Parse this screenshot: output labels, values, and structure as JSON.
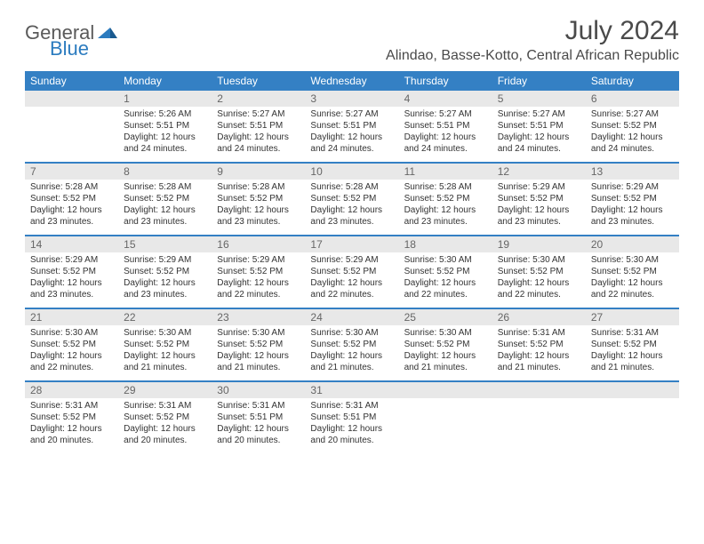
{
  "brand": {
    "part1": "General",
    "part2": "Blue"
  },
  "title": "July 2024",
  "location": "Alindao, Basse-Kotto, Central African Republic",
  "colors": {
    "header_bg": "#3480c4",
    "header_text": "#ffffff",
    "daynum_bg": "#e8e8e8",
    "rule": "#3480c4",
    "text": "#333333",
    "title_text": "#4a4a4a"
  },
  "weekdays": [
    "Sunday",
    "Monday",
    "Tuesday",
    "Wednesday",
    "Thursday",
    "Friday",
    "Saturday"
  ],
  "weeks": [
    [
      null,
      {
        "n": "1",
        "sr": "5:26 AM",
        "ss": "5:51 PM",
        "dl": "12 hours and 24 minutes."
      },
      {
        "n": "2",
        "sr": "5:27 AM",
        "ss": "5:51 PM",
        "dl": "12 hours and 24 minutes."
      },
      {
        "n": "3",
        "sr": "5:27 AM",
        "ss": "5:51 PM",
        "dl": "12 hours and 24 minutes."
      },
      {
        "n": "4",
        "sr": "5:27 AM",
        "ss": "5:51 PM",
        "dl": "12 hours and 24 minutes."
      },
      {
        "n": "5",
        "sr": "5:27 AM",
        "ss": "5:51 PM",
        "dl": "12 hours and 24 minutes."
      },
      {
        "n": "6",
        "sr": "5:27 AM",
        "ss": "5:52 PM",
        "dl": "12 hours and 24 minutes."
      }
    ],
    [
      {
        "n": "7",
        "sr": "5:28 AM",
        "ss": "5:52 PM",
        "dl": "12 hours and 23 minutes."
      },
      {
        "n": "8",
        "sr": "5:28 AM",
        "ss": "5:52 PM",
        "dl": "12 hours and 23 minutes."
      },
      {
        "n": "9",
        "sr": "5:28 AM",
        "ss": "5:52 PM",
        "dl": "12 hours and 23 minutes."
      },
      {
        "n": "10",
        "sr": "5:28 AM",
        "ss": "5:52 PM",
        "dl": "12 hours and 23 minutes."
      },
      {
        "n": "11",
        "sr": "5:28 AM",
        "ss": "5:52 PM",
        "dl": "12 hours and 23 minutes."
      },
      {
        "n": "12",
        "sr": "5:29 AM",
        "ss": "5:52 PM",
        "dl": "12 hours and 23 minutes."
      },
      {
        "n": "13",
        "sr": "5:29 AM",
        "ss": "5:52 PM",
        "dl": "12 hours and 23 minutes."
      }
    ],
    [
      {
        "n": "14",
        "sr": "5:29 AM",
        "ss": "5:52 PM",
        "dl": "12 hours and 23 minutes."
      },
      {
        "n": "15",
        "sr": "5:29 AM",
        "ss": "5:52 PM",
        "dl": "12 hours and 23 minutes."
      },
      {
        "n": "16",
        "sr": "5:29 AM",
        "ss": "5:52 PM",
        "dl": "12 hours and 22 minutes."
      },
      {
        "n": "17",
        "sr": "5:29 AM",
        "ss": "5:52 PM",
        "dl": "12 hours and 22 minutes."
      },
      {
        "n": "18",
        "sr": "5:30 AM",
        "ss": "5:52 PM",
        "dl": "12 hours and 22 minutes."
      },
      {
        "n": "19",
        "sr": "5:30 AM",
        "ss": "5:52 PM",
        "dl": "12 hours and 22 minutes."
      },
      {
        "n": "20",
        "sr": "5:30 AM",
        "ss": "5:52 PM",
        "dl": "12 hours and 22 minutes."
      }
    ],
    [
      {
        "n": "21",
        "sr": "5:30 AM",
        "ss": "5:52 PM",
        "dl": "12 hours and 22 minutes."
      },
      {
        "n": "22",
        "sr": "5:30 AM",
        "ss": "5:52 PM",
        "dl": "12 hours and 21 minutes."
      },
      {
        "n": "23",
        "sr": "5:30 AM",
        "ss": "5:52 PM",
        "dl": "12 hours and 21 minutes."
      },
      {
        "n": "24",
        "sr": "5:30 AM",
        "ss": "5:52 PM",
        "dl": "12 hours and 21 minutes."
      },
      {
        "n": "25",
        "sr": "5:30 AM",
        "ss": "5:52 PM",
        "dl": "12 hours and 21 minutes."
      },
      {
        "n": "26",
        "sr": "5:31 AM",
        "ss": "5:52 PM",
        "dl": "12 hours and 21 minutes."
      },
      {
        "n": "27",
        "sr": "5:31 AM",
        "ss": "5:52 PM",
        "dl": "12 hours and 21 minutes."
      }
    ],
    [
      {
        "n": "28",
        "sr": "5:31 AM",
        "ss": "5:52 PM",
        "dl": "12 hours and 20 minutes."
      },
      {
        "n": "29",
        "sr": "5:31 AM",
        "ss": "5:52 PM",
        "dl": "12 hours and 20 minutes."
      },
      {
        "n": "30",
        "sr": "5:31 AM",
        "ss": "5:51 PM",
        "dl": "12 hours and 20 minutes."
      },
      {
        "n": "31",
        "sr": "5:31 AM",
        "ss": "5:51 PM",
        "dl": "12 hours and 20 minutes."
      },
      null,
      null,
      null
    ]
  ],
  "labels": {
    "sunrise": "Sunrise:",
    "sunset": "Sunset:",
    "daylight": "Daylight:"
  }
}
